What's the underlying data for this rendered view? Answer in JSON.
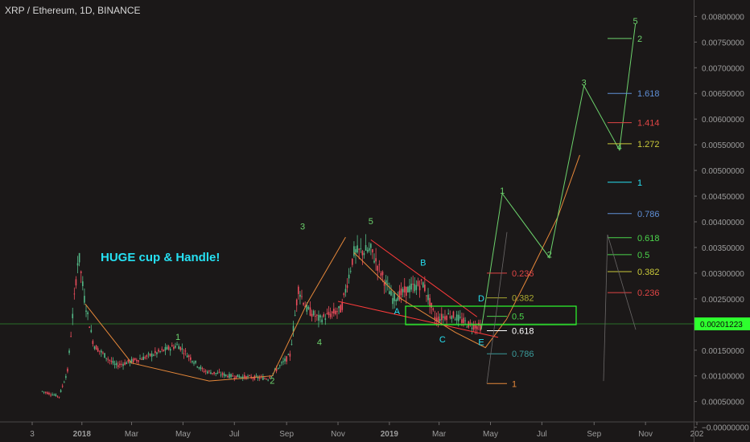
{
  "header": {
    "title": "XRP / Ethereum, 1D, BINANCE"
  },
  "annotation": {
    "note": "HUGE cup & Handle!"
  },
  "price_axis": {
    "ticks": [
      "0.00800000",
      "0.00750000",
      "0.00700000",
      "0.00650000",
      "0.00600000",
      "0.00550000",
      "0.00500000",
      "0.00450000",
      "0.00400000",
      "0.00350000",
      "0.00300000",
      "0.00250000",
      "0.00200000",
      "0.00150000",
      "0.00100000",
      "0.00050000",
      "−0.00000000"
    ],
    "current_label": "0.00201223"
  },
  "time_axis": {
    "ticks": [
      "3",
      "2018",
      "Mar",
      "May",
      "Jul",
      "Sep",
      "Nov",
      "2019",
      "Mar",
      "May",
      "Jul",
      "Sep",
      "Nov",
      "202"
    ]
  },
  "colors": {
    "background": "#1b1818",
    "up": "#53b987",
    "down": "#eb4d5c",
    "accent_green": "#2eff2e",
    "text": "#9c9c9c",
    "wave": "#6cd26c",
    "cup": "#e6883a",
    "trend": "#ff3b3b"
  },
  "chart_data": {
    "type": "candlestick",
    "title": "XRP / Ethereum, 1D, BINANCE",
    "ylim": [
      -0.0001,
      0.0081
    ],
    "current_price": 0.00201223,
    "waves": [
      {
        "label": "1",
        "date": "2018-04-25",
        "price": 0.0017
      },
      {
        "label": "2",
        "date": "2018-08-15",
        "price": 0.00085
      },
      {
        "label": "3",
        "date": "2018-09-20",
        "price": 0.00385
      },
      {
        "label": "4",
        "date": "2018-10-10",
        "price": 0.0016
      },
      {
        "label": "5",
        "date": "2018-12-10",
        "price": 0.00395
      },
      {
        "label": "A",
        "date": "2019-01-10",
        "price": 0.0022
      },
      {
        "label": "B",
        "date": "2019-02-10",
        "price": 0.00315
      },
      {
        "label": "C",
        "date": "2019-03-05",
        "price": 0.00165
      },
      {
        "label": "D",
        "date": "2019-04-20",
        "price": 0.00245
      },
      {
        "label": "E",
        "date": "2019-04-20",
        "price": 0.0016
      },
      {
        "label": "1",
        "date": "2019-05-15",
        "price": 0.00455
      },
      {
        "label": "2",
        "date": "2019-07-10",
        "price": 0.0033
      },
      {
        "label": "3",
        "date": "2019-08-20",
        "price": 0.00665
      },
      {
        "label": "4",
        "date": "2019-10-01",
        "price": 0.0054
      },
      {
        "label": "5",
        "date": "2019-10-20",
        "price": 0.00785
      }
    ],
    "fib_lower": [
      {
        "ratio": "0.236",
        "price": 0.003,
        "color": "#e04545"
      },
      {
        "ratio": "0.382",
        "price": 0.00252,
        "color": "#a8a830"
      },
      {
        "ratio": "0.5",
        "price": 0.00216,
        "color": "#4bd44b"
      },
      {
        "ratio": "0.618",
        "price": 0.00188,
        "color": "#ffffff"
      },
      {
        "ratio": "0.786",
        "price": 0.00143,
        "color": "#3a9a9a"
      },
      {
        "ratio": "1",
        "price": 0.00085,
        "color": "#e6883a"
      }
    ],
    "fib_upper": [
      {
        "ratio": "2",
        "price": 0.00757,
        "color": "#6cd26c"
      },
      {
        "ratio": "1.618",
        "price": 0.0065,
        "color": "#5f8fd6"
      },
      {
        "ratio": "1.414",
        "price": 0.00593,
        "color": "#e04545"
      },
      {
        "ratio": "1.272",
        "price": 0.00552,
        "color": "#c9c93a"
      },
      {
        "ratio": "1",
        "price": 0.00477,
        "color": "#26e0f2"
      },
      {
        "ratio": "0.786",
        "price": 0.00416,
        "color": "#5f8fd6"
      },
      {
        "ratio": "0.618",
        "price": 0.00369,
        "color": "#4bd44b"
      },
      {
        "ratio": "0.5",
        "price": 0.00336,
        "color": "#4bd44b"
      },
      {
        "ratio": "0.382",
        "price": 0.00303,
        "color": "#c9c93a"
      },
      {
        "ratio": "0.236",
        "price": 0.00262,
        "color": "#e04545"
      }
    ],
    "price_path": [
      [
        "2017-11-15",
        0.0007
      ],
      [
        "2017-12-05",
        0.0006
      ],
      [
        "2017-12-15",
        0.0011
      ],
      [
        "2017-12-28",
        0.0034
      ],
      [
        "2018-01-04",
        0.0025
      ],
      [
        "2018-01-15",
        0.0016
      ],
      [
        "2018-02-10",
        0.0012
      ],
      [
        "2018-03-15",
        0.00135
      ],
      [
        "2018-04-25",
        0.0016
      ],
      [
        "2018-05-25",
        0.0011
      ],
      [
        "2018-06-25",
        0.001
      ],
      [
        "2018-08-10",
        0.00095
      ],
      [
        "2018-09-05",
        0.0014
      ],
      [
        "2018-09-15",
        0.0027
      ],
      [
        "2018-09-25",
        0.0023
      ],
      [
        "2018-10-10",
        0.0021
      ],
      [
        "2018-11-05",
        0.0023
      ],
      [
        "2018-11-20",
        0.0034
      ],
      [
        "2018-12-10",
        0.00345
      ],
      [
        "2019-01-05",
        0.0025
      ],
      [
        "2019-01-25",
        0.0027
      ],
      [
        "2019-02-10",
        0.0028
      ],
      [
        "2019-02-25",
        0.0021
      ],
      [
        "2019-03-15",
        0.0022
      ],
      [
        "2019-04-05",
        0.002
      ],
      [
        "2019-04-20",
        0.00195
      ]
    ]
  }
}
